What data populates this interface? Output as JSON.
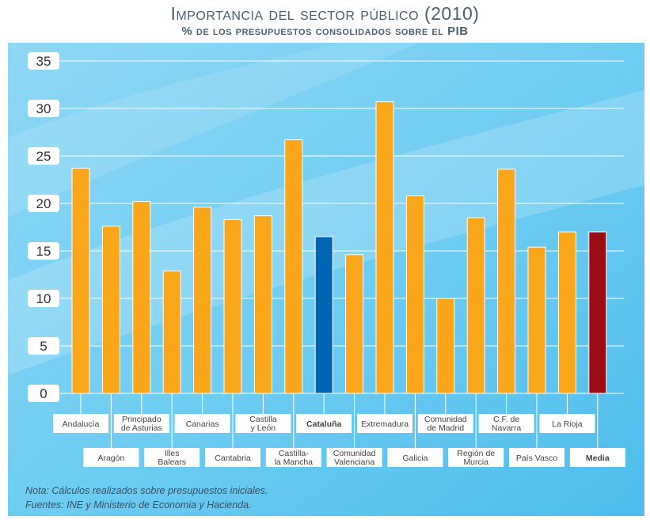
{
  "header": {
    "title": "Importancia del sector público (2010)",
    "subtitle": "% de los presupuestos consolidados sobre el PIB"
  },
  "notes": {
    "line1": "Nota: Cálculos realizados sobre presupuestos iniciales.",
    "line2": "Fuentes: INE y Ministerio de Economia y Hacienda."
  },
  "colors": {
    "background": "#5cc6f0",
    "bar_default": "#faa61a",
    "bar_highlight": "#0066b3",
    "bar_average": "#9b0d14",
    "gridline": "#ffffff"
  },
  "chart_data": {
    "type": "bar",
    "title": "Importancia del sector público (2010)",
    "subtitle": "% de los presupuestos consolidados sobre el PIB",
    "xlabel": "",
    "ylabel": "",
    "ylim": [
      0,
      35
    ],
    "yticks": [
      0,
      5,
      10,
      15,
      20,
      25,
      30,
      35
    ],
    "grid": true,
    "categories": [
      "Andalucía",
      "Aragón",
      "Principado de Asturias",
      "Illes Balears",
      "Canarias",
      "Cantabria",
      "Castilla y León",
      "Castilla-la Mancha",
      "Cataluña",
      "Comunidad Valenciana",
      "Extremadura",
      "Galicia",
      "Comunidad de Madrid",
      "Región de Murcia",
      "C.F. de Navarra",
      "País Vasco",
      "La Rioja",
      "Media"
    ],
    "category_lines": [
      [
        "Andalucía"
      ],
      [
        "Aragón"
      ],
      [
        "Principado",
        "de Asturias"
      ],
      [
        "Illes",
        "Balears"
      ],
      [
        "Canarias"
      ],
      [
        "Cantabria"
      ],
      [
        "Castilla",
        "y León"
      ],
      [
        "Castilla-",
        "la Mancha"
      ],
      [
        "Cataluña"
      ],
      [
        "Comunidad",
        "Valenciana"
      ],
      [
        "Extremadura"
      ],
      [
        "Galicia"
      ],
      [
        "Comunidad",
        "de Madrid"
      ],
      [
        "Región de",
        "Murcia"
      ],
      [
        "C.F. de",
        "Navarra"
      ],
      [
        "País Vasco"
      ],
      [
        "La Rioja"
      ],
      [
        "Media"
      ]
    ],
    "values": [
      23.7,
      17.6,
      20.2,
      12.9,
      19.6,
      18.3,
      18.7,
      26.7,
      16.5,
      14.6,
      30.7,
      20.8,
      10.0,
      18.5,
      23.6,
      15.4,
      17.0,
      17.0
    ],
    "highlight": {
      "Cataluña": "#0066b3",
      "Media": "#9b0d14"
    },
    "bold_categories": [
      "Cataluña",
      "Media"
    ]
  }
}
